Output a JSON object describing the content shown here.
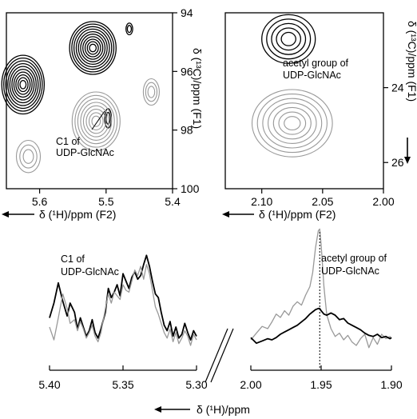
{
  "chart_data": [
    {
      "type": "contour",
      "panel": "hsqc-anomeric",
      "xlabel": "δ (¹H)/ppm (F2)",
      "ylabel": "δ (¹³C)/ppm (F1)",
      "xlim": [
        5.65,
        5.4
      ],
      "ylim": [
        94,
        100
      ],
      "xticks": [
        "5.6",
        "5.5",
        "5.4"
      ],
      "xtick_values": [
        5.6,
        5.5,
        5.4
      ],
      "yticks": [
        "94",
        "96",
        "98",
        "100"
      ],
      "ytick_values": [
        94,
        96,
        98,
        100
      ],
      "annotation": [
        "C1 of",
        "UDP-GlcNAc"
      ],
      "series": [
        {
          "color": "#000000",
          "peaks": [
            {
              "x": 5.52,
              "y": 95.2,
              "rx": 0.035,
              "ry": 0.9,
              "levels": 10
            },
            {
              "x": 5.625,
              "y": 96.45,
              "rx": 0.032,
              "ry": 1.0,
              "levels": 10
            },
            {
              "x": 5.465,
              "y": 94.55,
              "rx": 0.005,
              "ry": 0.2,
              "levels": 2
            },
            {
              "x": 5.497,
              "y": 97.6,
              "rx": 0.005,
              "ry": 0.33,
              "levels": 2
            }
          ]
        },
        {
          "color": "#999999",
          "peaks": [
            {
              "x": 5.515,
              "y": 97.7,
              "rx": 0.036,
              "ry": 1.0,
              "levels": 8
            },
            {
              "x": 5.617,
              "y": 98.9,
              "rx": 0.018,
              "ry": 0.55,
              "levels": 3
            },
            {
              "x": 5.432,
              "y": 96.7,
              "rx": 0.012,
              "ry": 0.45,
              "levels": 3
            }
          ]
        }
      ]
    },
    {
      "type": "contour",
      "panel": "hsqc-acetyl",
      "xlabel": "δ (¹H)/ppm (F2)",
      "ylabel": "δ (¹³C)/ppm (F1)",
      "xlim": [
        2.13,
        2.0
      ],
      "ylim": [
        22.0,
        26.7
      ],
      "xticks": [
        "2.10",
        "2.05",
        "2.00"
      ],
      "xtick_values": [
        2.1,
        2.05,
        2.0
      ],
      "yticks": [
        "24",
        "26"
      ],
      "ytick_values": [
        24,
        26
      ],
      "annotation": [
        "acetyl group of",
        "UDP-GlcNAc"
      ],
      "series": [
        {
          "color": "#000000",
          "peaks": [
            {
              "x": 2.078,
              "y": 22.7,
              "rx": 0.022,
              "ry": 0.65,
              "levels": 5
            }
          ]
        },
        {
          "color": "#999999",
          "peaks": [
            {
              "x": 2.075,
              "y": 24.95,
              "rx": 0.033,
              "ry": 0.9,
              "levels": 7
            }
          ]
        }
      ]
    },
    {
      "type": "line",
      "panel": "1d-anomeric",
      "xlim": [
        5.4,
        5.3
      ],
      "xticks": [
        "5.40",
        "5.35",
        "5.30"
      ],
      "xtick_values": [
        5.4,
        5.35,
        5.3
      ],
      "annotation": [
        "C1 of",
        "UDP-GlcNAc"
      ],
      "series": [
        {
          "color": "#000000",
          "x": [
            5.4,
            5.397,
            5.394,
            5.391,
            5.388,
            5.386,
            5.383,
            5.381,
            5.379,
            5.377,
            5.375,
            5.373,
            5.371,
            5.369,
            5.367,
            5.365,
            5.362,
            5.36,
            5.358,
            5.356,
            5.354,
            5.352,
            5.35,
            5.348,
            5.346,
            5.344,
            5.342,
            5.34,
            5.338,
            5.336,
            5.334,
            5.332,
            5.33,
            5.328,
            5.326,
            5.324,
            5.322,
            5.32,
            5.318,
            5.316,
            5.314,
            5.312,
            5.31,
            5.308,
            5.306,
            5.304,
            5.302,
            5.3
          ],
          "y": [
            0.3,
            0.46,
            0.68,
            0.48,
            0.32,
            0.46,
            0.36,
            0.18,
            0.3,
            0.2,
            0.1,
            0.16,
            0.28,
            0.14,
            0.08,
            0.18,
            0.36,
            0.62,
            0.52,
            0.58,
            0.66,
            0.54,
            0.78,
            0.7,
            0.62,
            0.74,
            0.8,
            0.72,
            0.76,
            0.88,
            0.98,
            0.86,
            0.7,
            0.56,
            0.52,
            0.36,
            0.22,
            0.16,
            0.26,
            0.1,
            0.2,
            0.08,
            0.12,
            0.24,
            0.14,
            0.06,
            0.16,
            0.1
          ]
        },
        {
          "color": "#999999",
          "x": [
            5.4,
            5.397,
            5.394,
            5.391,
            5.388,
            5.386,
            5.383,
            5.381,
            5.379,
            5.377,
            5.375,
            5.373,
            5.371,
            5.369,
            5.367,
            5.365,
            5.362,
            5.36,
            5.358,
            5.356,
            5.354,
            5.352,
            5.35,
            5.348,
            5.346,
            5.344,
            5.342,
            5.34,
            5.338,
            5.336,
            5.334,
            5.332,
            5.33,
            5.328,
            5.326,
            5.324,
            5.322,
            5.32,
            5.318,
            5.316,
            5.314,
            5.312,
            5.31,
            5.308,
            5.306,
            5.304,
            5.302,
            5.3
          ],
          "y": [
            0.2,
            0.06,
            0.3,
            0.56,
            0.4,
            0.24,
            0.28,
            0.16,
            0.26,
            0.18,
            0.08,
            0.14,
            0.22,
            0.1,
            0.04,
            0.14,
            0.4,
            0.56,
            0.46,
            0.58,
            0.54,
            0.5,
            0.66,
            0.6,
            0.58,
            0.7,
            0.82,
            0.76,
            0.86,
            0.72,
            0.88,
            0.78,
            0.6,
            0.42,
            0.34,
            0.24,
            0.14,
            0.08,
            0.18,
            0.04,
            0.14,
            0.02,
            0.08,
            0.16,
            0.1,
            0.0,
            0.12,
            0.06
          ]
        }
      ]
    },
    {
      "type": "line",
      "panel": "1d-acetyl",
      "xlim": [
        2.0,
        1.9
      ],
      "xticks": [
        "2.00",
        "1.95",
        "1.90"
      ],
      "xtick_values": [
        2.0,
        1.95,
        1.9
      ],
      "annotation": [
        "acetyl group of",
        "UDP-GlcNAc"
      ],
      "xlabel": "δ (¹H)/ppm",
      "marker_x": 1.951,
      "series": [
        {
          "color": "#999999",
          "x": [
            2.0,
            1.996,
            1.992,
            1.988,
            1.985,
            1.982,
            1.979,
            1.976,
            1.973,
            1.97,
            1.967,
            1.964,
            1.961,
            1.958,
            1.956,
            1.954,
            1.952,
            1.951,
            1.95,
            1.948,
            1.946,
            1.943,
            1.94,
            1.937,
            1.934,
            1.931,
            1.928,
            1.925,
            1.922,
            1.919,
            1.916,
            1.913,
            1.91,
            1.907,
            1.904,
            1.901,
            1.9
          ],
          "y": [
            0.1,
            0.22,
            0.34,
            0.3,
            0.42,
            0.56,
            0.5,
            0.62,
            0.54,
            0.7,
            0.78,
            0.72,
            0.9,
            1.05,
            1.3,
            1.75,
            2.05,
            2.08,
            1.8,
            1.05,
            0.55,
            0.3,
            0.16,
            0.22,
            0.1,
            0.18,
            0.06,
            0.0,
            0.12,
            0.2,
            -0.04,
            0.14,
            0.02,
            0.2,
            0.12,
            0.16,
            0.12
          ]
        },
        {
          "color": "#000000",
          "x": [
            2.0,
            1.996,
            1.992,
            1.988,
            1.985,
            1.982,
            1.979,
            1.976,
            1.973,
            1.97,
            1.967,
            1.964,
            1.961,
            1.958,
            1.956,
            1.954,
            1.952,
            1.951,
            1.95,
            1.948,
            1.946,
            1.943,
            1.94,
            1.937,
            1.934,
            1.931,
            1.928,
            1.925,
            1.922,
            1.919,
            1.916,
            1.913,
            1.91,
            1.907,
            1.904,
            1.901,
            1.9
          ],
          "y": [
            0.14,
            0.04,
            0.08,
            0.12,
            0.1,
            0.14,
            0.2,
            0.24,
            0.28,
            0.32,
            0.36,
            0.42,
            0.48,
            0.56,
            0.6,
            0.64,
            0.66,
            0.66,
            0.62,
            0.56,
            0.54,
            0.58,
            0.54,
            0.46,
            0.48,
            0.4,
            0.36,
            0.32,
            0.28,
            0.22,
            0.18,
            0.16,
            0.2,
            0.14,
            0.16,
            0.12,
            0.14
          ]
        }
      ]
    }
  ]
}
